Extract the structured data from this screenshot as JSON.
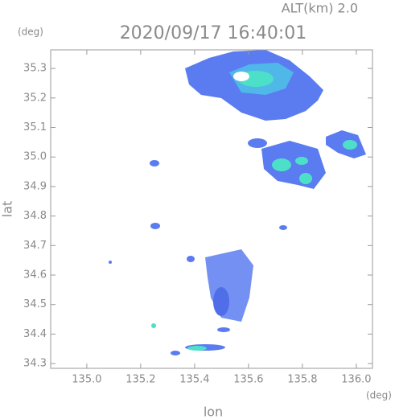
{
  "chart_data": {
    "type": "radar",
    "title": "2020/09/17 16:40:01",
    "subtitle": "ALT(km) 2.0",
    "x_label": "lon",
    "y_label": "lat",
    "x_unit": "(deg)",
    "y_unit": "(deg)",
    "xlim": [
      134.866,
      136.06
    ],
    "ylim": [
      34.284,
      35.363
    ],
    "xticks": [
      {
        "value": 135,
        "label": "135.0"
      },
      135.2,
      135.4,
      135.6,
      135.8,
      {
        "value": 136,
        "label": "136.0"
      }
    ],
    "yticks": [
      34.3,
      34.4,
      34.5,
      34.6,
      34.7,
      34.8,
      34.9,
      {
        "value": 35,
        "label": "35.0"
      },
      35.1,
      35.2,
      35.3
    ]
  }
}
